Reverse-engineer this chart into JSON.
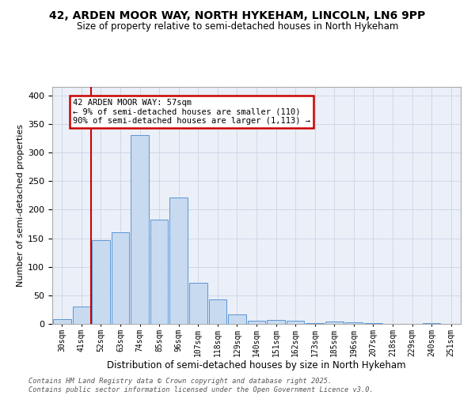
{
  "title": "42, ARDEN MOOR WAY, NORTH HYKEHAM, LINCOLN, LN6 9PP",
  "subtitle": "Size of property relative to semi-detached houses in North Hykeham",
  "xlabel": "Distribution of semi-detached houses by size in North Hykeham",
  "ylabel": "Number of semi-detached properties",
  "categories": [
    "30sqm",
    "41sqm",
    "52sqm",
    "63sqm",
    "74sqm",
    "85sqm",
    "96sqm",
    "107sqm",
    "118sqm",
    "129sqm",
    "140sqm",
    "151sqm",
    "162sqm",
    "173sqm",
    "185sqm",
    "196sqm",
    "207sqm",
    "218sqm",
    "229sqm",
    "240sqm",
    "251sqm"
  ],
  "values": [
    8,
    30,
    147,
    161,
    330,
    183,
    222,
    72,
    43,
    16,
    6,
    7,
    5,
    1,
    4,
    3,
    1,
    0,
    0,
    1,
    0
  ],
  "bar_color": "#c8daf0",
  "bar_edge_color": "#5a96d4",
  "vline_x": 1.5,
  "vline_color": "#cc0000",
  "annotation_text": "42 ARDEN MOOR WAY: 57sqm\n← 9% of semi-detached houses are smaller (110)\n90% of semi-detached houses are larger (1,113) →",
  "annotation_box_facecolor": "#ffffff",
  "annotation_box_edgecolor": "#cc0000",
  "ylim": [
    0,
    415
  ],
  "yticks": [
    0,
    50,
    100,
    150,
    200,
    250,
    300,
    350,
    400
  ],
  "grid_color": "#ccd5e5",
  "plot_bg_color": "#eaeff8",
  "footer_text": "Contains HM Land Registry data © Crown copyright and database right 2025.\nContains public sector information licensed under the Open Government Licence v3.0."
}
